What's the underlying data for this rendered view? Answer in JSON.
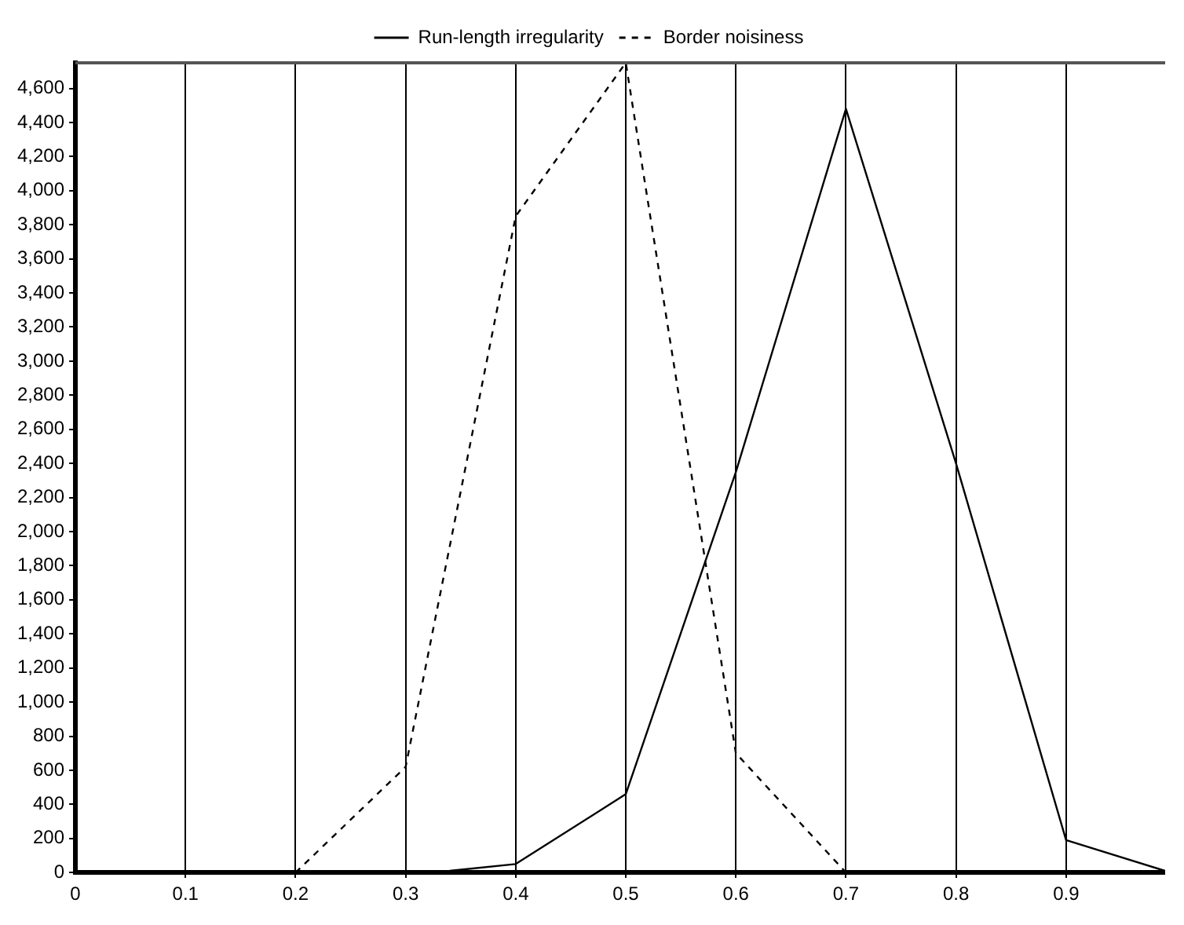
{
  "chart_data": {
    "type": "line",
    "series": [
      {
        "name": "Run-length irregularity",
        "color": "#000000",
        "line_style": "solid",
        "x": [
          0.34,
          0.4,
          0.5,
          0.6,
          0.7,
          0.8,
          0.9,
          0.99
        ],
        "values": [
          10,
          50,
          460,
          2350,
          4480,
          2400,
          190,
          10
        ]
      },
      {
        "name": "Border noisiness",
        "color": "#000000",
        "line_style": "dashed",
        "x": [
          0.2,
          0.3,
          0.4,
          0.5,
          0.6,
          0.7
        ],
        "values": [
          0,
          620,
          3850,
          4750,
          700,
          0
        ]
      }
    ],
    "xlim": [
      0,
      0.99
    ],
    "xticks": [
      0,
      0.1,
      0.2,
      0.3,
      0.4,
      0.5,
      0.6,
      0.7,
      0.8,
      0.9
    ],
    "ylim": [
      0,
      4750
    ],
    "yticks": [
      0,
      200,
      400,
      600,
      800,
      {
        "value": 1000,
        "label": "1,000"
      },
      {
        "value": 1200,
        "label": "1,200"
      },
      {
        "value": 1400,
        "label": "1,400"
      },
      {
        "value": 1600,
        "label": "1,600"
      },
      {
        "value": 1800,
        "label": "1,800"
      },
      {
        "value": 2000,
        "label": "2,000"
      },
      {
        "value": 2200,
        "label": "2,200"
      },
      {
        "value": 2400,
        "label": "2,400"
      },
      {
        "value": 2600,
        "label": "2,600"
      },
      {
        "value": 2800,
        "label": "2,800"
      },
      {
        "value": 3000,
        "label": "3,000"
      },
      {
        "value": 3200,
        "label": "3,200"
      },
      {
        "value": 3400,
        "label": "3,400"
      },
      {
        "value": 3600,
        "label": "3,600"
      },
      {
        "value": 3800,
        "label": "3,800"
      },
      {
        "value": 4000,
        "label": "4,000"
      },
      {
        "value": 4200,
        "label": "4,200"
      },
      {
        "value": 4400,
        "label": "4,400"
      },
      {
        "value": 4600,
        "label": "4,600"
      }
    ],
    "grid": "x",
    "legend": "top",
    "marker": "none"
  }
}
